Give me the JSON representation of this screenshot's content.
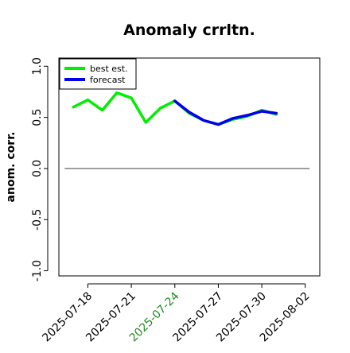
{
  "chart_data": {
    "type": "line",
    "title": "Anomaly crrltn.",
    "xlabel": "",
    "ylabel": "anom. corr.",
    "x_dates": [
      "2025-07-17",
      "2025-07-18",
      "2025-07-19",
      "2025-07-20",
      "2025-07-21",
      "2025-07-22",
      "2025-07-23",
      "2025-07-24",
      "2025-07-25",
      "2025-07-26",
      "2025-07-27",
      "2025-07-28",
      "2025-07-29",
      "2025-07-30",
      "2025-07-31"
    ],
    "xticks": [
      "2025-07-18",
      "2025-07-21",
      "2025-07-24",
      "2025-07-27",
      "2025-07-30",
      "2025-08-02"
    ],
    "xtick_colors": [
      "#000000",
      "#000000",
      "#228b22",
      "#000000",
      "#000000",
      "#000000"
    ],
    "xlim": [
      "2025-07-16",
      "2025-08-03"
    ],
    "ylim": [
      -1.05,
      1.08
    ],
    "yticks": [
      -1.0,
      -0.5,
      0.0,
      0.5,
      1.0
    ],
    "ytick_labels": [
      "-1.0",
      "-0.5",
      "0.0",
      "0.5",
      "1.0"
    ],
    "reference_line_y": 0.0,
    "legend_position": "top-left",
    "grid": false,
    "series": [
      {
        "name": "best est.",
        "color": "#00ee00",
        "values": [
          0.6,
          0.67,
          0.57,
          0.74,
          0.69,
          0.45,
          0.59,
          0.66,
          0.54,
          0.47,
          0.43,
          0.48,
          0.51,
          0.57,
          0.53
        ]
      },
      {
        "name": "forecast",
        "color": "#0000ee",
        "values": [
          null,
          null,
          null,
          null,
          null,
          null,
          null,
          0.66,
          0.55,
          0.47,
          0.43,
          0.49,
          0.52,
          0.56,
          0.54
        ]
      }
    ]
  }
}
